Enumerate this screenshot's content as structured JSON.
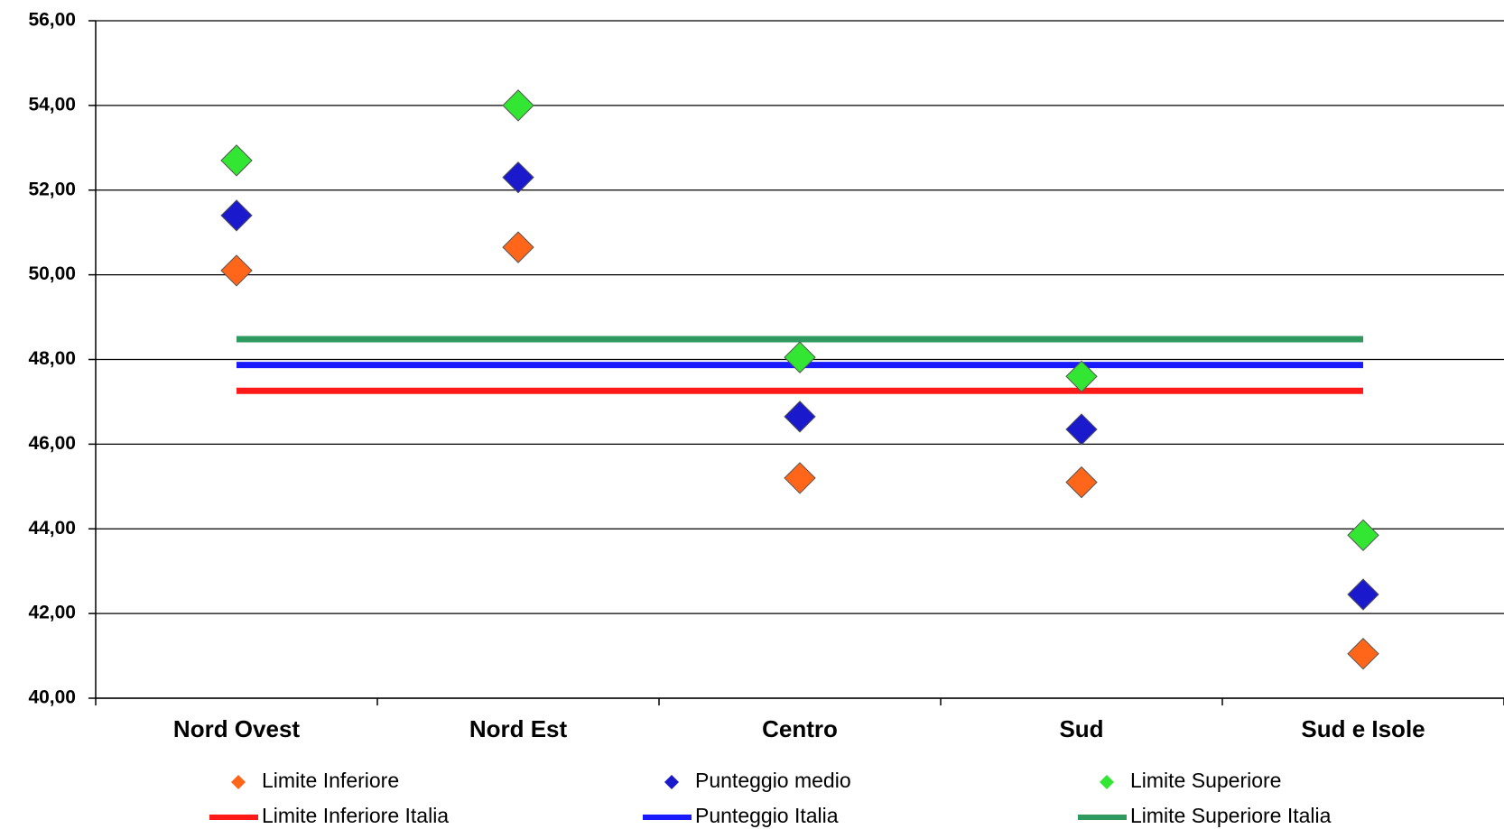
{
  "chart_data": {
    "type": "line",
    "categories": [
      "Nord Ovest",
      "Nord Est",
      "Centro",
      "Sud",
      "Sud e Isole"
    ],
    "series": [
      {
        "name": "Limite Inferiore",
        "color": "#ff661a",
        "mode": "markers",
        "values": [
          50.1,
          50.65,
          45.2,
          45.1,
          41.05
        ]
      },
      {
        "name": "Punteggio medio",
        "color": "#1a1acc",
        "mode": "markers",
        "values": [
          51.4,
          52.3,
          46.65,
          46.35,
          42.45
        ]
      },
      {
        "name": "Limite Superiore",
        "color": "#33e633",
        "mode": "markers",
        "values": [
          52.7,
          54.0,
          48.05,
          47.6,
          43.85
        ]
      },
      {
        "name": "Limite Inferiore Italia",
        "color": "#ff1a1a",
        "mode": "line",
        "values": [
          47.26,
          47.26,
          47.26,
          47.26,
          47.26
        ]
      },
      {
        "name": "Punteggio Italia",
        "color": "#1a1aff",
        "mode": "line",
        "values": [
          47.87,
          47.87,
          47.87,
          47.87,
          47.87
        ]
      },
      {
        "name": "Limite Superiore Italia",
        "color": "#2e9a5e",
        "mode": "line",
        "values": [
          48.48,
          48.48,
          48.48,
          48.48,
          48.48
        ]
      }
    ],
    "ylim": [
      40,
      56
    ],
    "yticks": [
      {
        "value": 40,
        "label": "40,00"
      },
      {
        "value": 42,
        "label": "42,00"
      },
      {
        "value": 44,
        "label": "44,00"
      },
      {
        "value": 46,
        "label": "46,00"
      },
      {
        "value": 48,
        "label": "48,00"
      },
      {
        "value": 50,
        "label": "50,00"
      },
      {
        "value": 52,
        "label": "52,00"
      },
      {
        "value": 54,
        "label": "54,00"
      },
      {
        "value": 56,
        "label": "56,00"
      }
    ],
    "grid": true
  }
}
